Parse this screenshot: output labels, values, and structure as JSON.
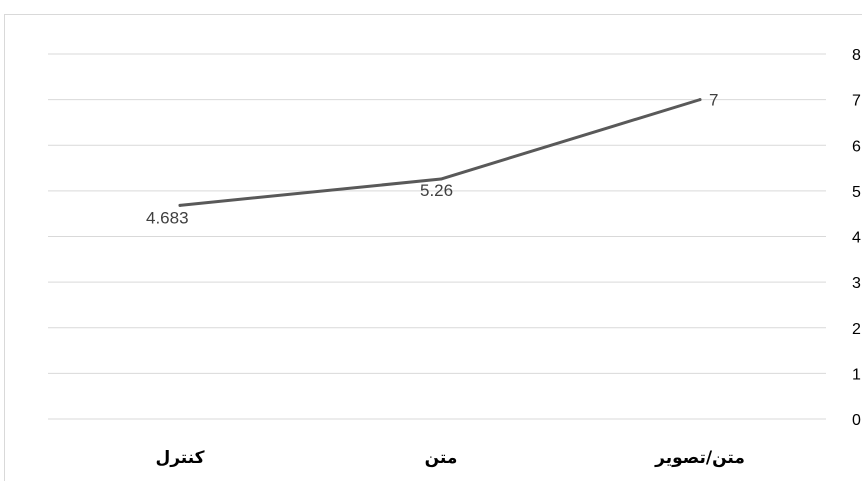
{
  "chart_data": {
    "type": "line",
    "categories": [
      "کنترل",
      "متن",
      "متن/تصویر"
    ],
    "series": [
      {
        "values": [
          4.683,
          5.26,
          7
        ],
        "labels": [
          "4.683",
          "5.26",
          "7"
        ]
      }
    ],
    "y_ticks": [
      "0",
      "1",
      "2",
      "3",
      "4",
      "5",
      "6",
      "7",
      "8"
    ],
    "ylim": [
      0,
      8
    ],
    "grid": true,
    "x_axis_direction": "right-to-left",
    "y_axis_side": "right",
    "line_color": "#595959",
    "grid_color": "#d9d9d9"
  }
}
